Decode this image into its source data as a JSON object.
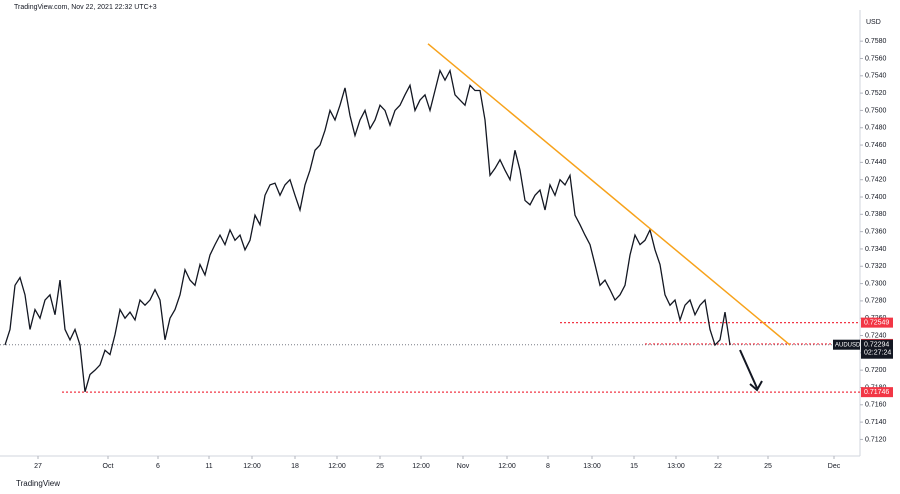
{
  "chart_data": {
    "type": "line",
    "header": "TradingView.com, Nov 22, 2021 22:32 UTC+3",
    "currency": "USD",
    "brand": "TradingView",
    "xlim": [
      0,
      171
    ],
    "ylim": [
      0.7102,
      0.7616
    ],
    "yticks": [
      {
        "value": 0.712,
        "label": "0.7120"
      },
      {
        "value": 0.714,
        "label": "0.7140"
      },
      {
        "value": 0.716,
        "label": "0.7160"
      },
      {
        "value": 0.718,
        "label": "0.7180"
      },
      {
        "value": 0.72,
        "label": "0.7200"
      },
      {
        "value": 0.722,
        "label": "0.7220"
      },
      {
        "value": 0.724,
        "label": "0.7240"
      },
      {
        "value": 0.726,
        "label": "0.7260"
      },
      {
        "value": 0.728,
        "label": "0.7280"
      },
      {
        "value": 0.73,
        "label": "0.7300"
      },
      {
        "value": 0.732,
        "label": "0.7320"
      },
      {
        "value": 0.734,
        "label": "0.7340"
      },
      {
        "value": 0.736,
        "label": "0.7360"
      },
      {
        "value": 0.738,
        "label": "0.7380"
      },
      {
        "value": 0.74,
        "label": "0.7400"
      },
      {
        "value": 0.742,
        "label": "0.7420"
      },
      {
        "value": 0.744,
        "label": "0.7440"
      },
      {
        "value": 0.746,
        "label": "0.7460"
      },
      {
        "value": 0.748,
        "label": "0.7480"
      },
      {
        "value": 0.75,
        "label": "0.7500"
      },
      {
        "value": 0.752,
        "label": "0.7520"
      },
      {
        "value": 0.754,
        "label": "0.7540"
      },
      {
        "value": 0.756,
        "label": "0.7560"
      },
      {
        "value": 0.758,
        "label": "0.7580"
      }
    ],
    "xticks": [
      {
        "value": 6.6,
        "label": "27"
      },
      {
        "value": 20.6,
        "label": "Oct"
      },
      {
        "value": 30.6,
        "label": "6"
      },
      {
        "value": 40.8,
        "label": "11"
      },
      {
        "value": 49.4,
        "label": "12:00"
      },
      {
        "value": 58,
        "label": "18"
      },
      {
        "value": 66.4,
        "label": "12:00"
      },
      {
        "value": 75,
        "label": "25"
      },
      {
        "value": 83.2,
        "label": "12:00"
      },
      {
        "value": 91.6,
        "label": "Nov"
      },
      {
        "value": 100.4,
        "label": "12:00"
      },
      {
        "value": 108.6,
        "label": "8"
      },
      {
        "value": 117.4,
        "label": "13:00"
      },
      {
        "value": 125.8,
        "label": "15"
      },
      {
        "value": 134.2,
        "label": "13:00"
      },
      {
        "value": 142.6,
        "label": "22"
      },
      {
        "value": 152.6,
        "label": "25"
      },
      {
        "value": 165.8,
        "label": "Dec"
      }
    ],
    "series": [
      {
        "name": "AUDUSD",
        "color": "#131722",
        "x": [
          0,
          1,
          2,
          3,
          4,
          5,
          6,
          7,
          8,
          9,
          10,
          11,
          12,
          13,
          14,
          15,
          16,
          17,
          18,
          19,
          20,
          21,
          22,
          23,
          24,
          25,
          26,
          27,
          28,
          29,
          30,
          31,
          32,
          33,
          34,
          35,
          36,
          37,
          38,
          39,
          40,
          41,
          42,
          43,
          44,
          45,
          46,
          47,
          48,
          49,
          50,
          51,
          52,
          53,
          54,
          55,
          56,
          57,
          58,
          59,
          60,
          61,
          62,
          63,
          64,
          65,
          66,
          67,
          68,
          69,
          70,
          71,
          72,
          73,
          74,
          75,
          76,
          77,
          78,
          79,
          80,
          81,
          82,
          83,
          84,
          85,
          86,
          87,
          88,
          89,
          90,
          91,
          92,
          93,
          94,
          95,
          96,
          97,
          98,
          99,
          100,
          101,
          102,
          103,
          104,
          105,
          106,
          107,
          108,
          109,
          110,
          111,
          112,
          113,
          114,
          115,
          116,
          117,
          118,
          119,
          120,
          121,
          122,
          123,
          124,
          125,
          126,
          127,
          128,
          129,
          130,
          131,
          132,
          133,
          134,
          135,
          136,
          137,
          138,
          139,
          140,
          141,
          142,
          143,
          144,
          145
        ],
        "values": [
          0.7229,
          0.7247,
          0.7298,
          0.7307,
          0.7287,
          0.7247,
          0.727,
          0.726,
          0.7281,
          0.7287,
          0.7264,
          0.7304,
          0.7247,
          0.7235,
          0.7247,
          0.7229,
          0.7175,
          0.7195,
          0.72,
          0.7206,
          0.7223,
          0.7218,
          0.7241,
          0.727,
          0.726,
          0.7267,
          0.7258,
          0.7281,
          0.7275,
          0.7281,
          0.7293,
          0.7281,
          0.7235,
          0.726,
          0.727,
          0.7287,
          0.7316,
          0.7304,
          0.7298,
          0.7322,
          0.731,
          0.7333,
          0.7345,
          0.7356,
          0.7345,
          0.7362,
          0.735,
          0.7356,
          0.7339,
          0.735,
          0.7379,
          0.7368,
          0.7402,
          0.7414,
          0.7416,
          0.7402,
          0.7414,
          0.742,
          0.7402,
          0.7385,
          0.7414,
          0.7431,
          0.7454,
          0.746,
          0.7477,
          0.75,
          0.7489,
          0.7506,
          0.7526,
          0.7494,
          0.7471,
          0.7489,
          0.75,
          0.7479,
          0.7489,
          0.7506,
          0.75,
          0.7483,
          0.75,
          0.7506,
          0.7518,
          0.7529,
          0.75,
          0.7512,
          0.7518,
          0.75,
          0.7523,
          0.7546,
          0.7535,
          0.7546,
          0.7518,
          0.7512,
          0.7506,
          0.7529,
          0.7523,
          0.7523,
          0.7489,
          0.7425,
          0.7433,
          0.7443,
          0.7431,
          0.742,
          0.7454,
          0.7431,
          0.7396,
          0.7391,
          0.7402,
          0.7408,
          0.7385,
          0.7414,
          0.7402,
          0.742,
          0.7414,
          0.7425,
          0.7379,
          0.7368,
          0.7356,
          0.7345,
          0.7322,
          0.7298,
          0.7304,
          0.7293,
          0.7281,
          0.7287,
          0.7298,
          0.7333,
          0.7356,
          0.7345,
          0.735,
          0.7362,
          0.7339,
          0.7322,
          0.7287,
          0.7275,
          0.7281,
          0.7258,
          0.7275,
          0.7281,
          0.7264,
          0.7275,
          0.7281,
          0.7247,
          0.7229,
          0.7235,
          0.7267,
          0.7229
        ]
      }
    ],
    "trendline": {
      "color": "#f7a21b",
      "x": [
        84.6,
        157
      ],
      "values": [
        0.7577,
        0.7229
      ]
    },
    "levels": [
      {
        "value": 0.72549,
        "color": "#f23645",
        "from": 111
      },
      {
        "value": 0.72303,
        "color": "#f23645",
        "from": 128
      },
      {
        "value": 0.71746,
        "color": "#f23645",
        "from": 11.4
      }
    ],
    "last_price": {
      "value": 0.72294,
      "color": "#131722",
      "symbol": "AUDUSD",
      "countdown": "02:27:24"
    }
  }
}
